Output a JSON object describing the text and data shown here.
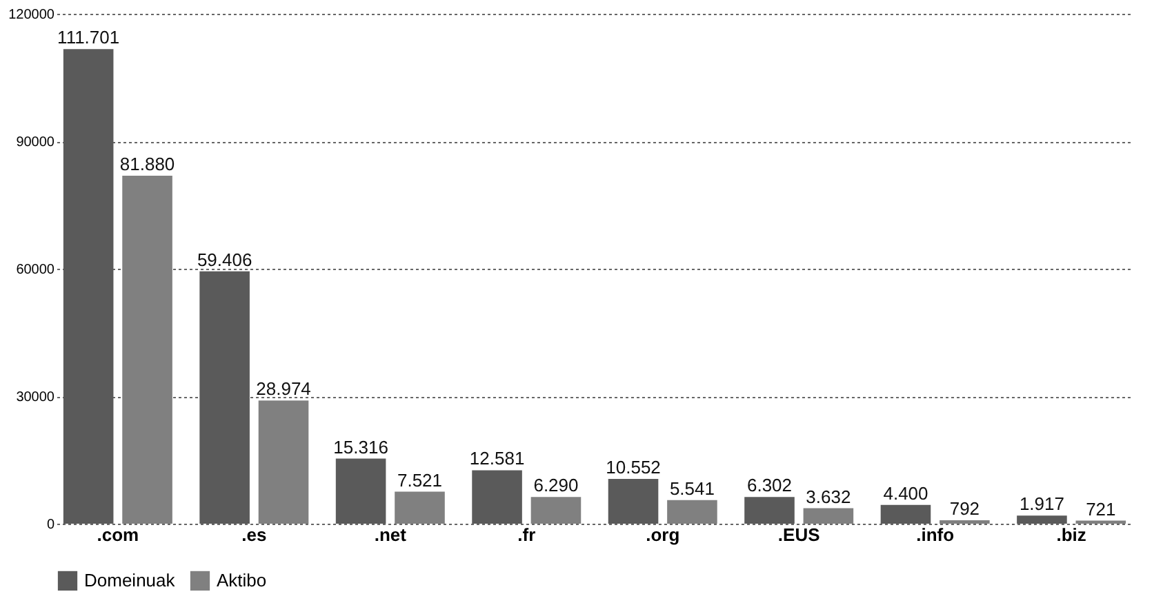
{
  "chart_data": {
    "type": "bar",
    "categories": [
      ".com",
      ".es",
      ".net",
      ".fr",
      ".org",
      ".EUS",
      ".info",
      ".biz"
    ],
    "series": [
      {
        "name": "Domeinuak",
        "color": "#5a5a5a",
        "values": [
          111701,
          59406,
          15316,
          12581,
          10552,
          6302,
          4400,
          1917
        ],
        "value_labels": [
          "111.701",
          "59.406",
          "15.316",
          "12.581",
          "10.552",
          "6.302",
          "4.400",
          "1.917"
        ]
      },
      {
        "name": "Aktibo",
        "color": "#808080",
        "values": [
          81880,
          28974,
          7521,
          6290,
          5541,
          3632,
          792,
          721
        ],
        "value_labels": [
          "81.880",
          "28.974",
          "7.521",
          "6.290",
          "5.541",
          "3.632",
          "792",
          "721"
        ]
      }
    ],
    "ylim": [
      0,
      120000
    ],
    "yticks": [
      0,
      30000,
      60000,
      90000,
      120000
    ],
    "grid": "y",
    "legend": "bottom"
  }
}
